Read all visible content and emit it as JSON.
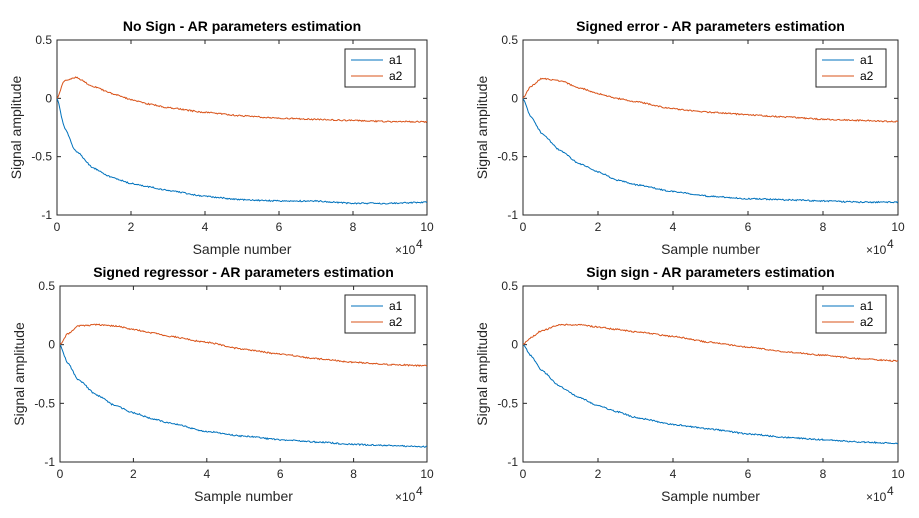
{
  "chart_data": [
    {
      "type": "line",
      "title": "No Sign - AR parameters estimation",
      "xlabel": "Sample number",
      "ylabel": "Signal amplitude",
      "xlim": [
        0,
        100000
      ],
      "ylim": [
        -1,
        0.5
      ],
      "x_ticks": [
        "0",
        "2",
        "4",
        "6",
        "8",
        "10"
      ],
      "x_exponent_label": "×10",
      "x_exponent": "4",
      "y_ticks": [
        "0.5",
        "0",
        "-0.5",
        "-1"
      ],
      "legend_position": "top-right",
      "grid": false,
      "x": [
        0,
        2000,
        5000,
        10000,
        15000,
        20000,
        25000,
        30000,
        40000,
        50000,
        60000,
        70000,
        80000,
        90000,
        100000
      ],
      "series": [
        {
          "name": "a1",
          "color": "#0072BD",
          "values": [
            0,
            -0.25,
            -0.45,
            -0.6,
            -0.68,
            -0.73,
            -0.76,
            -0.79,
            -0.84,
            -0.87,
            -0.88,
            -0.88,
            -0.9,
            -0.9,
            -0.89
          ]
        },
        {
          "name": "a2",
          "color": "#D95319",
          "values": [
            0,
            0.15,
            0.18,
            0.1,
            0.04,
            -0.01,
            -0.05,
            -0.08,
            -0.12,
            -0.15,
            -0.17,
            -0.18,
            -0.19,
            -0.2,
            -0.2
          ]
        }
      ]
    },
    {
      "type": "line",
      "title": "Signed error - AR parameters estimation",
      "xlabel": "Sample number",
      "ylabel": "Signal amplitude",
      "xlim": [
        0,
        100000
      ],
      "ylim": [
        -1,
        0.5
      ],
      "x_ticks": [
        "0",
        "2",
        "4",
        "6",
        "8",
        "10"
      ],
      "x_exponent_label": "×10",
      "x_exponent": "4",
      "y_ticks": [
        "0.5",
        "0",
        "-0.5",
        "-1"
      ],
      "legend_position": "top-right",
      "grid": false,
      "x": [
        0,
        2000,
        5000,
        10000,
        15000,
        20000,
        25000,
        30000,
        40000,
        50000,
        60000,
        70000,
        80000,
        90000,
        100000
      ],
      "series": [
        {
          "name": "a1",
          "color": "#0072BD",
          "values": [
            0,
            -0.15,
            -0.3,
            -0.45,
            -0.56,
            -0.63,
            -0.7,
            -0.74,
            -0.8,
            -0.84,
            -0.86,
            -0.87,
            -0.88,
            -0.89,
            -0.89
          ]
        },
        {
          "name": "a2",
          "color": "#D95319",
          "values": [
            0,
            0.1,
            0.17,
            0.15,
            0.09,
            0.04,
            0.0,
            -0.03,
            -0.09,
            -0.12,
            -0.14,
            -0.16,
            -0.18,
            -0.19,
            -0.2
          ]
        }
      ]
    },
    {
      "type": "line",
      "title": "Signed regressor - AR parameters estimation",
      "xlabel": "Sample number",
      "ylabel": "Signal amplitude",
      "xlim": [
        0,
        100000
      ],
      "ylim": [
        -1,
        0.5
      ],
      "x_ticks": [
        "0",
        "2",
        "4",
        "6",
        "8",
        "10"
      ],
      "x_exponent_label": "×10",
      "x_exponent": "4",
      "y_ticks": [
        "0.5",
        "0",
        "-0.5",
        "-1"
      ],
      "legend_position": "top-right",
      "grid": false,
      "x": [
        0,
        2000,
        5000,
        10000,
        15000,
        20000,
        25000,
        30000,
        40000,
        50000,
        60000,
        70000,
        80000,
        90000,
        100000
      ],
      "series": [
        {
          "name": "a1",
          "color": "#0072BD",
          "values": [
            0,
            -0.15,
            -0.3,
            -0.43,
            -0.52,
            -0.58,
            -0.63,
            -0.67,
            -0.74,
            -0.78,
            -0.81,
            -0.83,
            -0.85,
            -0.86,
            -0.87
          ]
        },
        {
          "name": "a2",
          "color": "#D95319",
          "values": [
            0,
            0.09,
            0.16,
            0.17,
            0.16,
            0.13,
            0.1,
            0.07,
            0.02,
            -0.04,
            -0.08,
            -0.12,
            -0.15,
            -0.17,
            -0.18
          ]
        }
      ]
    },
    {
      "type": "line",
      "title": "Sign sign - AR parameters estimation",
      "xlabel": "Sample number",
      "ylabel": "Signal amplitude",
      "xlim": [
        0,
        100000
      ],
      "ylim": [
        -1,
        0.5
      ],
      "x_ticks": [
        "0",
        "2",
        "4",
        "6",
        "8",
        "10"
      ],
      "x_exponent_label": "×10",
      "x_exponent": "4",
      "y_ticks": [
        "0.5",
        "0",
        "-0.5",
        "-1"
      ],
      "legend_position": "top-right",
      "grid": false,
      "x": [
        0,
        2000,
        5000,
        10000,
        15000,
        20000,
        25000,
        30000,
        40000,
        50000,
        60000,
        70000,
        80000,
        90000,
        100000
      ],
      "series": [
        {
          "name": "a1",
          "color": "#0072BD",
          "values": [
            0,
            -0.09,
            -0.22,
            -0.36,
            -0.45,
            -0.52,
            -0.57,
            -0.62,
            -0.68,
            -0.72,
            -0.76,
            -0.79,
            -0.81,
            -0.83,
            -0.84
          ]
        },
        {
          "name": "a2",
          "color": "#D95319",
          "values": [
            0,
            0.06,
            0.12,
            0.17,
            0.17,
            0.15,
            0.13,
            0.11,
            0.07,
            0.02,
            -0.02,
            -0.06,
            -0.09,
            -0.12,
            -0.14
          ]
        }
      ]
    }
  ]
}
